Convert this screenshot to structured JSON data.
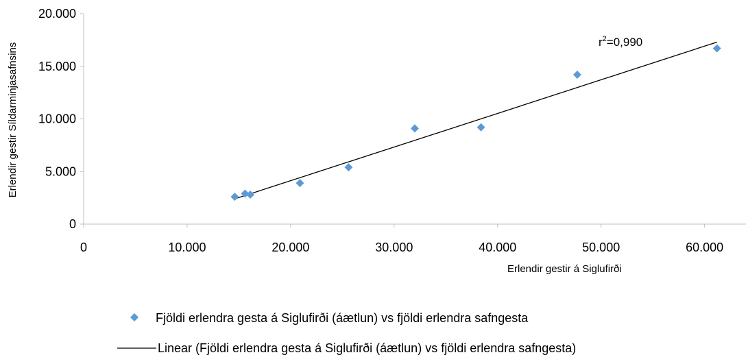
{
  "chart_data": {
    "type": "scatter",
    "xlabel": "Erlendir gestir á Siglufirði",
    "ylabel": "Erlendir gestir Síldarminjasafnsins",
    "xlim": [
      0,
      64000
    ],
    "ylim": [
      0,
      20000
    ],
    "x_ticks": [
      0,
      10000,
      20000,
      30000,
      40000,
      50000,
      60000
    ],
    "y_ticks": [
      0,
      5000,
      10000,
      15000,
      20000
    ],
    "x_tick_labels": [
      "0",
      "10.000",
      "20.000",
      "30.000",
      "40.000",
      "50.000",
      "60.000"
    ],
    "y_tick_labels": [
      "0",
      "5.000",
      "10.000",
      "15.000",
      "20.000"
    ],
    "grid": false,
    "legend_position": "bottom",
    "series": [
      {
        "name": "Fjöldi erlendra gesta á Siglufirði (áætlun) vs fjöldi erlendra safngesta",
        "color": "#5B9BD5",
        "marker": "diamond",
        "points": [
          {
            "x": 14600,
            "y": 2600
          },
          {
            "x": 15600,
            "y": 2900
          },
          {
            "x": 16100,
            "y": 2800
          },
          {
            "x": 20900,
            "y": 3900
          },
          {
            "x": 25600,
            "y": 5400
          },
          {
            "x": 32000,
            "y": 9100
          },
          {
            "x": 38400,
            "y": 9200
          },
          {
            "x": 47700,
            "y": 14200
          },
          {
            "x": 61200,
            "y": 16700
          }
        ]
      }
    ],
    "trendline": {
      "name": "Linear (Fjöldi erlendra gesta á Siglufirði (áætlun) vs fjöldi erlendra safngesta)",
      "color": "#000000",
      "x_start": 14600,
      "x_end": 61200,
      "y_start": 2400,
      "y_end": 17300
    },
    "annotation": {
      "r_label": "r",
      "r_sup": "2",
      "r_value": "=0,990"
    }
  }
}
